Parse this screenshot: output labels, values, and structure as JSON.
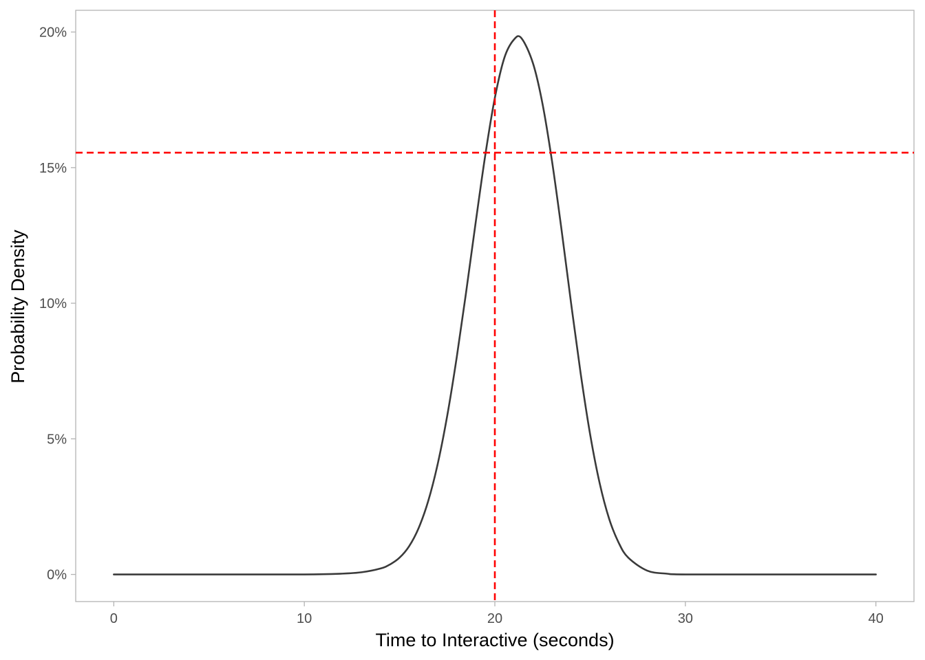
{
  "chart_data": {
    "type": "line",
    "title": "",
    "xlabel": "Time to Interactive (seconds)",
    "ylabel": "Probability Density",
    "xlim": [
      -2,
      42
    ],
    "ylim": [
      -0.01,
      0.208
    ],
    "x_ticks": [
      0,
      10,
      20,
      30,
      40
    ],
    "x_tick_labels": [
      "0",
      "10",
      "20",
      "30",
      "40"
    ],
    "y_ticks": [
      0,
      0.05,
      0.1,
      0.15,
      0.2
    ],
    "y_tick_labels": [
      "0%",
      "5%",
      "10%",
      "15%",
      "20%"
    ],
    "grid": false,
    "legend": "none",
    "series": [
      {
        "color": "#3a3a3a",
        "x": [
          0,
          5,
          10,
          12,
          13,
          14,
          14.5,
          15,
          15.5,
          16,
          16.5,
          17,
          17.5,
          18,
          18.5,
          19,
          19.5,
          20,
          20.5,
          21,
          21.4,
          22,
          22.5,
          23,
          23.5,
          24,
          24.5,
          25,
          25.5,
          26,
          26.5,
          27,
          28,
          29,
          30,
          35,
          40
        ],
        "y": [
          0,
          0,
          0,
          0.0003,
          0.0008,
          0.0022,
          0.0037,
          0.0062,
          0.0104,
          0.0171,
          0.027,
          0.0407,
          0.0585,
          0.0801,
          0.1045,
          0.1301,
          0.1547,
          0.1757,
          0.1905,
          0.1972,
          0.1977,
          0.1885,
          0.1736,
          0.1524,
          0.1271,
          0.1001,
          0.0743,
          0.0517,
          0.0337,
          0.0205,
          0.0117,
          0.0062,
          0.0014,
          0.0003,
          0,
          0,
          0
        ]
      }
    ],
    "reference_lines": [
      {
        "orientation": "vertical",
        "value": 20,
        "color": "#ff0000",
        "style": "dashed"
      },
      {
        "orientation": "horizontal",
        "value": 0.1555,
        "color": "#ff0000",
        "style": "dashed"
      }
    ],
    "axis_color": "#b3b3b3"
  }
}
